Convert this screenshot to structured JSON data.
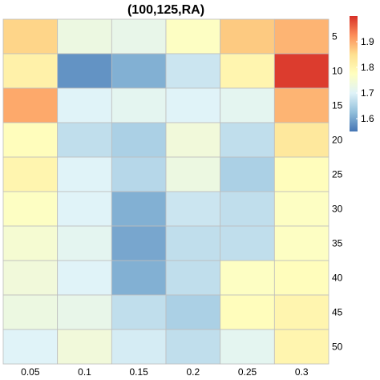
{
  "chart_data": {
    "type": "heatmap",
    "title": "(100,125,RA)",
    "x_categories": [
      "0.05",
      "0.1",
      "0.15",
      "0.2",
      "0.25",
      "0.3"
    ],
    "y_categories": [
      "5",
      "10",
      "15",
      "20",
      "25",
      "30",
      "35",
      "40",
      "45",
      "50"
    ],
    "values": [
      [
        1.86,
        1.73,
        1.72,
        1.77,
        1.87,
        1.89
      ],
      [
        1.81,
        1.58,
        1.61,
        1.68,
        1.8,
        1.99
      ],
      [
        1.9,
        1.7,
        1.71,
        1.7,
        1.71,
        1.89
      ],
      [
        1.78,
        1.67,
        1.65,
        1.74,
        1.67,
        1.83
      ],
      [
        1.8,
        1.7,
        1.66,
        1.73,
        1.65,
        1.78
      ],
      [
        1.77,
        1.7,
        1.61,
        1.68,
        1.67,
        1.77
      ],
      [
        1.75,
        1.71,
        1.6,
        1.67,
        1.67,
        1.77
      ],
      [
        1.74,
        1.7,
        1.61,
        1.67,
        1.77,
        1.78
      ],
      [
        1.73,
        1.72,
        1.67,
        1.65,
        1.78,
        1.8
      ],
      [
        1.7,
        1.74,
        1.69,
        1.67,
        1.71,
        1.8
      ]
    ],
    "value_range": [
      1.55,
      2.0
    ],
    "legend": {
      "ticks": [
        "1.6",
        "1.7",
        "1.8",
        "1.9"
      ],
      "placement": "right"
    },
    "color_scale": [
      "#4575b4",
      "#91bfdb",
      "#e0f3f8",
      "#ffffbf",
      "#fee090",
      "#fc8d59",
      "#d73027"
    ],
    "grid": true
  }
}
